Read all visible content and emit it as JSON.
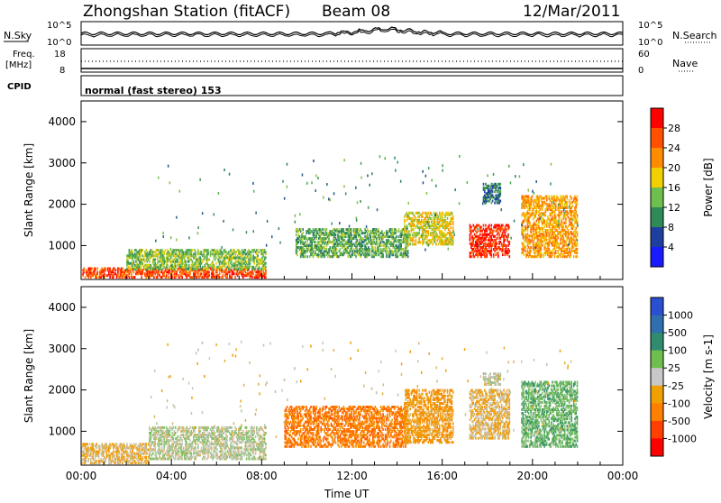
{
  "header": {
    "station": "Zhongshan Station (fitACF)",
    "beam": "Beam 08",
    "date": "12/Mar/2011"
  },
  "strip_labels": {
    "nsky": "N.Sky",
    "nsearch": "N.Search",
    "freq_line1": "Freq.",
    "freq_line2": "[MHz]",
    "nave": "Nave",
    "cpid": "CPID",
    "cpid_value": "normal (fast stereo) 153",
    "noise_ticks_left": [
      "10^5",
      "10^0"
    ],
    "noise_ticks_right": [
      "10^5",
      "10^0"
    ],
    "freq_ticks": [
      "18",
      "8"
    ],
    "nave_ticks": [
      "60",
      "0"
    ]
  },
  "colors": {
    "power_scale": [
      "#1a1aff",
      "#1f3fa0",
      "#2e8b57",
      "#6fbf4f",
      "#f2d000",
      "#ff8c00",
      "#ff5000",
      "#ff0000"
    ],
    "velocity_scale": [
      "#2a4fd0",
      "#2f6fb0",
      "#2f8c6f",
      "#6fbf4f",
      "#c8c8c8",
      "#f0a000",
      "#ff7f00",
      "#ff4000",
      "#ff0000"
    ]
  },
  "chart_data": [
    {
      "type": "heatmap",
      "panel": "power",
      "ylabel": "Slant Range [km]",
      "xlabel": "",
      "ylim": [
        180,
        4500
      ],
      "yticks": [
        1000,
        2000,
        3000,
        4000
      ],
      "colorbar": {
        "label": "Power [dB]",
        "range": [
          0,
          32
        ],
        "ticks": [
          "28",
          "24",
          "20",
          "16",
          "12",
          "8",
          "4"
        ]
      },
      "features": [
        {
          "t_start": 0.0,
          "t_end": 8.2,
          "r_start": 200,
          "r_end": 450,
          "value": 28
        },
        {
          "t_start": 2.0,
          "t_end": 8.2,
          "r_start": 400,
          "r_end": 900,
          "value": 14
        },
        {
          "t_start": 9.5,
          "t_end": 14.5,
          "r_start": 700,
          "r_end": 1400,
          "value": 12
        },
        {
          "t_start": 14.3,
          "t_end": 16.5,
          "r_start": 1000,
          "r_end": 1800,
          "value": 18
        },
        {
          "t_start": 17.2,
          "t_end": 19.0,
          "r_start": 700,
          "r_end": 1500,
          "value": 30
        },
        {
          "t_start": 17.8,
          "t_end": 18.6,
          "r_start": 2000,
          "r_end": 2500,
          "value": 8
        },
        {
          "t_start": 19.5,
          "t_end": 22.0,
          "r_start": 700,
          "r_end": 2200,
          "value": 22
        }
      ]
    },
    {
      "type": "heatmap",
      "panel": "velocity",
      "ylabel": "Slant Range [km]",
      "xlabel": "Time UT",
      "ylim": [
        180,
        4500
      ],
      "yticks": [
        1000,
        2000,
        3000,
        4000
      ],
      "xlim": [
        0,
        24
      ],
      "xticks": [
        "00:00",
        "04:00",
        "08:00",
        "12:00",
        "16:00",
        "20:00",
        "00:00"
      ],
      "colorbar": {
        "label": "Velocity [m s-1]",
        "range": [
          -1000,
          1000
        ],
        "ticks": [
          "1000",
          "500",
          "100",
          "25",
          "-25",
          "-100",
          "-500",
          "-1000"
        ]
      },
      "features": [
        {
          "t_start": 0.0,
          "t_end": 3.0,
          "r_start": 200,
          "r_end": 700,
          "value": -150
        },
        {
          "t_start": 3.0,
          "t_end": 8.2,
          "r_start": 300,
          "r_end": 1100,
          "value": 50
        },
        {
          "t_start": 9.0,
          "t_end": 14.5,
          "r_start": 600,
          "r_end": 1600,
          "value": -500
        },
        {
          "t_start": 14.3,
          "t_end": 16.5,
          "r_start": 700,
          "r_end": 2000,
          "value": -300
        },
        {
          "t_start": 17.2,
          "t_end": 19.0,
          "r_start": 800,
          "r_end": 2000,
          "value": -150
        },
        {
          "t_start": 17.8,
          "t_end": 18.6,
          "r_start": 2100,
          "r_end": 2400,
          "value": 0
        },
        {
          "t_start": 19.5,
          "t_end": 22.0,
          "r_start": 600,
          "r_end": 2200,
          "value": 300
        }
      ]
    }
  ]
}
